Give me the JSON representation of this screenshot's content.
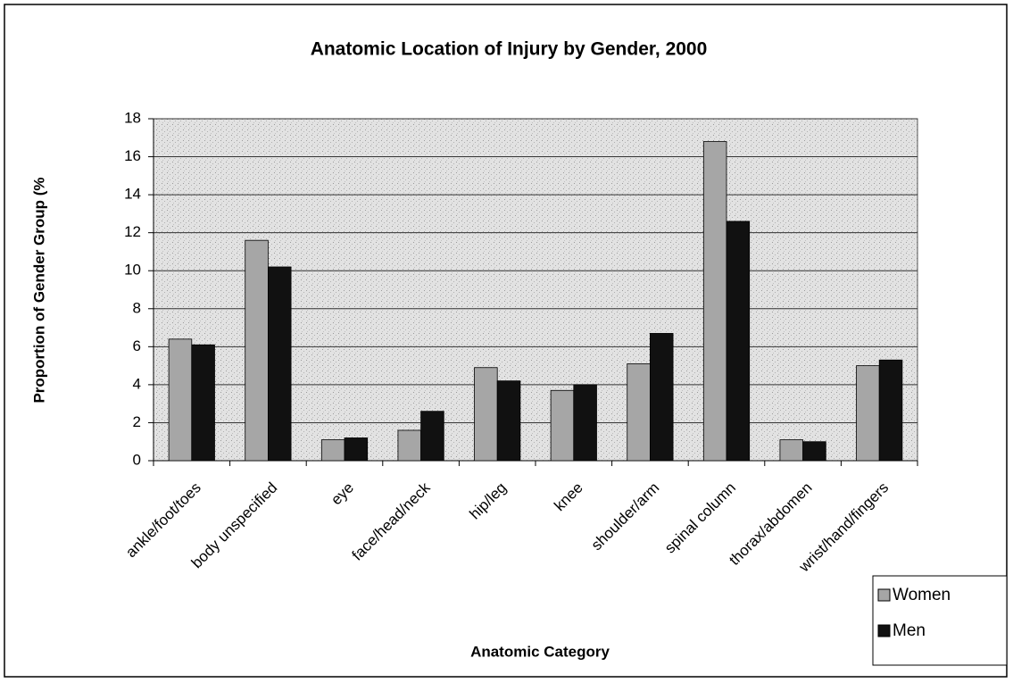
{
  "chart_data": {
    "type": "bar",
    "title": "Anatomic Location of Injury by Gender, 2000",
    "x_label": "Anatomic Category",
    "y_label": "Proportion of Gender Group (%",
    "categories": [
      "ankle/foot/toes",
      "body unspecified",
      "eye",
      "face/head/neck",
      "hip/leg",
      "knee",
      "shoulder/arm",
      "spinal column",
      "thorax/abdomen",
      "wrist/hand/fingers"
    ],
    "series": [
      {
        "name": "Women",
        "color": "#a6a6a6",
        "values": [
          6.4,
          11.6,
          1.1,
          1.6,
          4.9,
          3.7,
          5.1,
          16.8,
          1.1,
          5.0
        ]
      },
      {
        "name": "Men",
        "color": "#111111",
        "values": [
          6.1,
          10.2,
          1.2,
          2.6,
          4.2,
          4.0,
          6.7,
          12.6,
          1.0,
          5.3
        ]
      }
    ],
    "ylim": [
      0,
      18
    ],
    "yticks": [
      0,
      2,
      4,
      6,
      8,
      10,
      12,
      14,
      16,
      18
    ],
    "grid": true,
    "legend": "bottom-right"
  }
}
